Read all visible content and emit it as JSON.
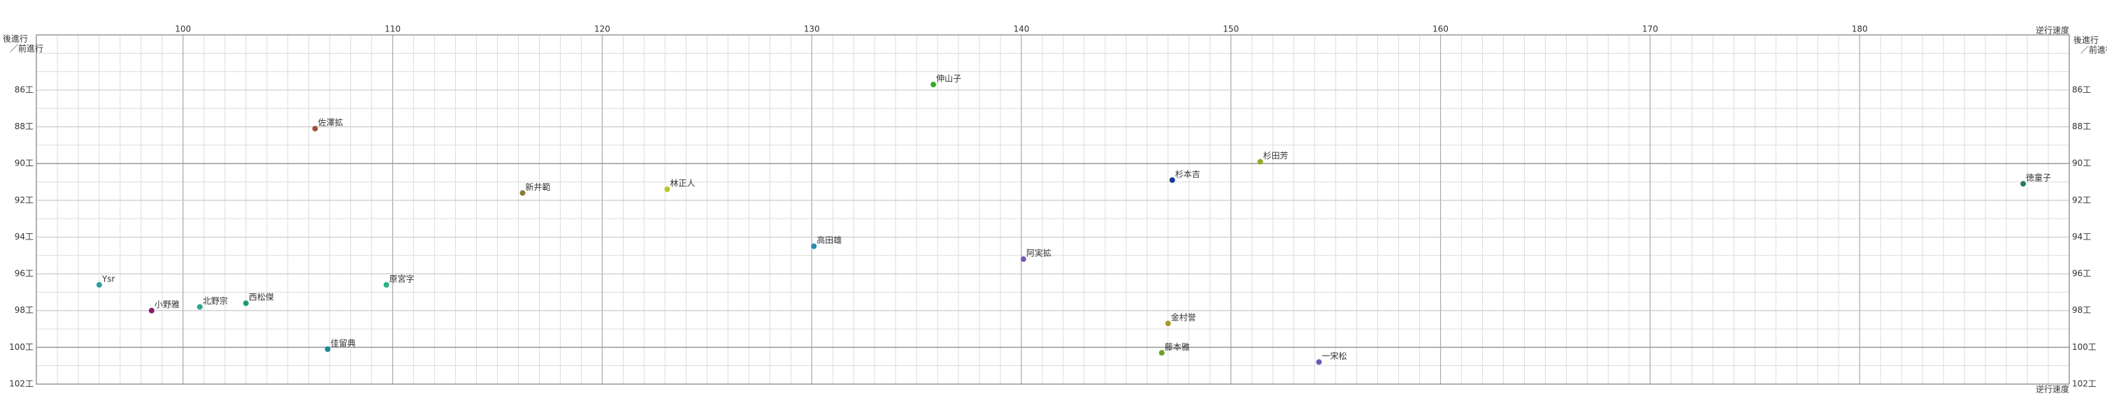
{
  "chart_data": {
    "type": "scatter",
    "corner_labels": {
      "top_left": [
        "後進行",
        "／前進行"
      ],
      "top_right": [
        "逆行速度",
        "後進行",
        "／前進行"
      ],
      "bottom_right": "逆行速度"
    },
    "xlim": [
      93,
      190
    ],
    "xticks": [
      100,
      110,
      120,
      130,
      140,
      150,
      160,
      170,
      180
    ],
    "ylim": [
      83,
      102
    ],
    "yticks": [
      {
        "value": 86,
        "label": "86工"
      },
      {
        "value": 88,
        "label": "88工"
      },
      {
        "value": 90,
        "label": "90工"
      },
      {
        "value": 92,
        "label": "92工"
      },
      {
        "value": 94,
        "label": "94工"
      },
      {
        "value": 96,
        "label": "96工"
      },
      {
        "value": 98,
        "label": "98工"
      },
      {
        "value": 100,
        "label": "100工"
      },
      {
        "value": 102,
        "label": "102工"
      }
    ],
    "y_inverted": true,
    "grid": true,
    "points": [
      {
        "name": "伸山子",
        "x": 135.8,
        "y": 85.7,
        "color": "#3aa82a"
      },
      {
        "name": "佐澤拡",
        "x": 106.3,
        "y": 88.1,
        "color": "#a0503a"
      },
      {
        "name": "杉田芳",
        "x": 151.4,
        "y": 89.9,
        "color": "#9aa82a"
      },
      {
        "name": "杉本吉",
        "x": 147.2,
        "y": 90.9,
        "color": "#1a3a9a"
      },
      {
        "name": "徳童子",
        "x": 187.8,
        "y": 91.1,
        "color": "#2a7a6a"
      },
      {
        "name": "新井範",
        "x": 116.2,
        "y": 91.6,
        "color": "#8a7a3a"
      },
      {
        "name": "林正人",
        "x": 123.1,
        "y": 91.4,
        "color": "#b8c82a"
      },
      {
        "name": "高田雄",
        "x": 130.1,
        "y": 94.5,
        "color": "#2a8ab0"
      },
      {
        "name": "阿実拡",
        "x": 140.1,
        "y": 95.2,
        "color": "#7a5ab0"
      },
      {
        "name": "Ysr",
        "x": 96.0,
        "y": 96.6,
        "color": "#2aa0a0"
      },
      {
        "name": "原宮字",
        "x": 109.7,
        "y": 96.6,
        "color": "#2ab08a"
      },
      {
        "name": "小野雅",
        "x": 98.5,
        "y": 98.0,
        "color": "#8a1a6a"
      },
      {
        "name": "北野宗",
        "x": 100.8,
        "y": 97.8,
        "color": "#2aa88a"
      },
      {
        "name": "西松傑",
        "x": 103.0,
        "y": 97.6,
        "color": "#1a9a7a"
      },
      {
        "name": "金村誉",
        "x": 147.0,
        "y": 98.7,
        "color": "#a89a2a"
      },
      {
        "name": "佳留典",
        "x": 106.9,
        "y": 100.1,
        "color": "#1a8a9a"
      },
      {
        "name": "藤本雅",
        "x": 146.7,
        "y": 100.3,
        "color": "#6aa02a"
      },
      {
        "name": "一宋松",
        "x": 154.2,
        "y": 100.8,
        "color": "#6a5ab8"
      }
    ]
  }
}
